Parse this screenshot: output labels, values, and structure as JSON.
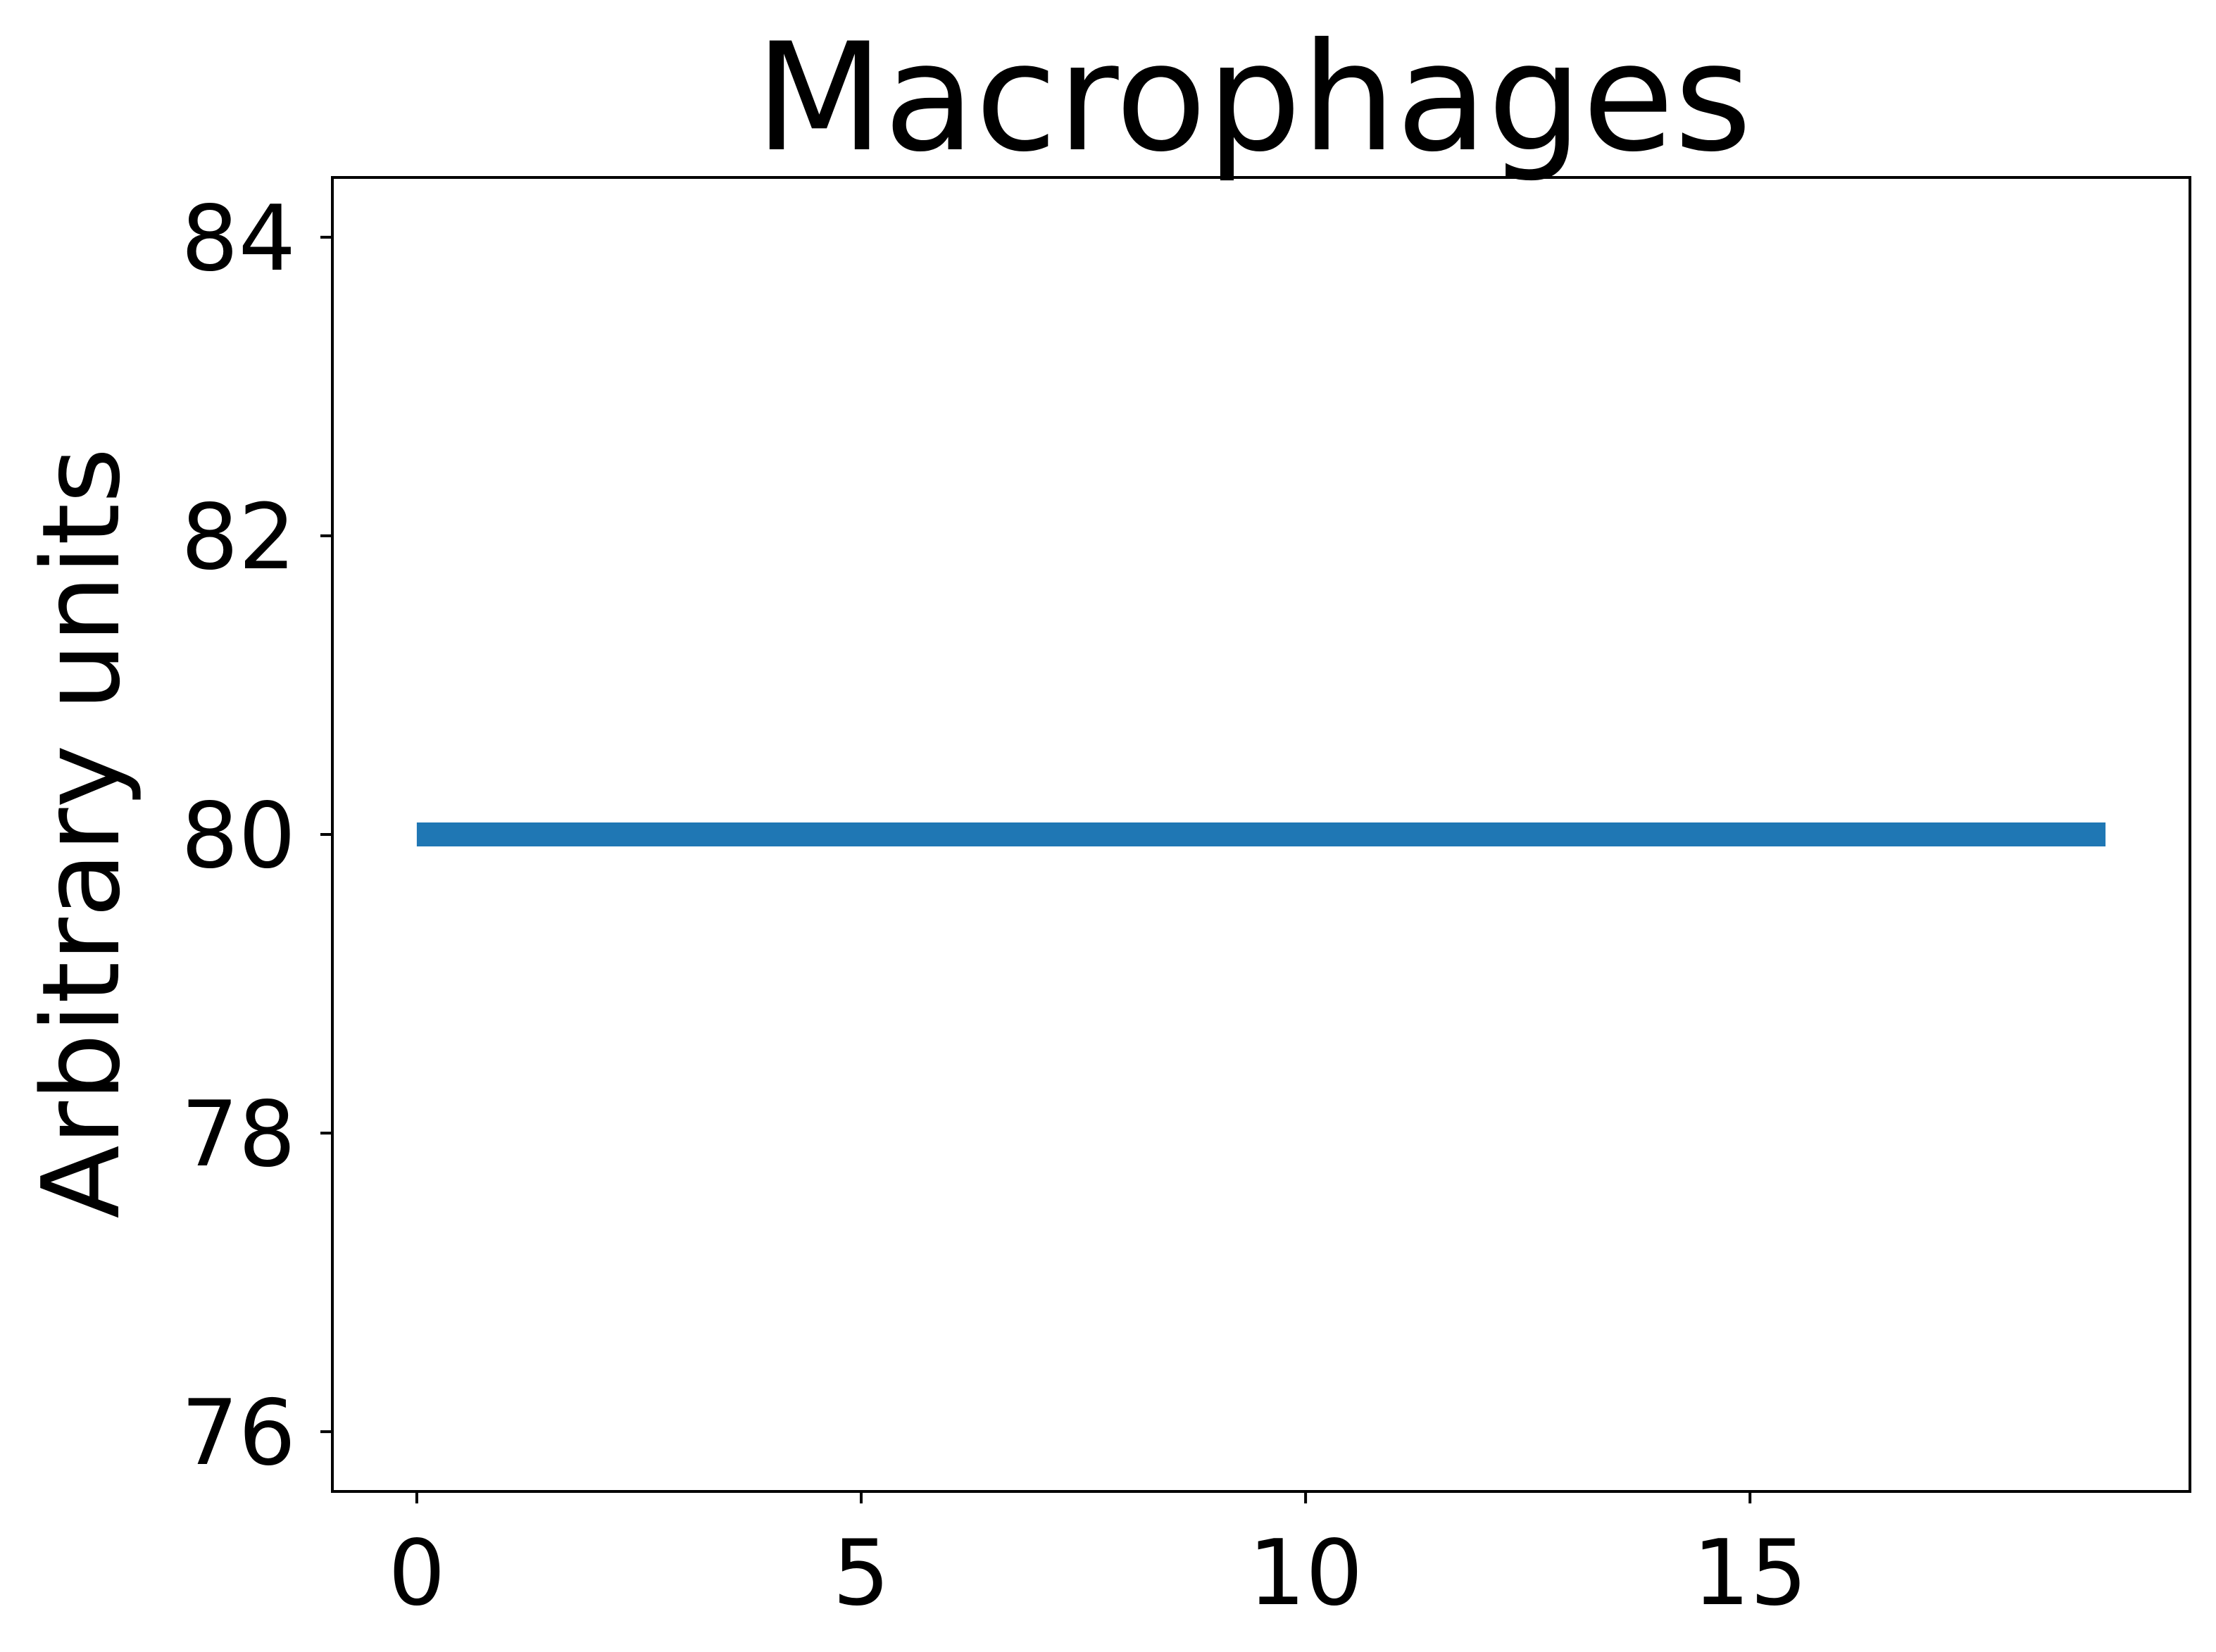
{
  "chart_data": {
    "type": "line",
    "title": "Macrophages",
    "xlabel": "",
    "ylabel": "Arbitrary units",
    "xlim": [
      -0.95,
      19.95
    ],
    "ylim": [
      75.6,
      84.4
    ],
    "x_ticks": [
      0,
      5,
      10,
      15
    ],
    "x_tick_labels": [
      "0",
      "5",
      "10",
      "15"
    ],
    "y_ticks": [
      76,
      78,
      80,
      82,
      84
    ],
    "y_tick_labels": [
      "76",
      "78",
      "80",
      "82",
      "84"
    ],
    "grid": false,
    "series": [
      {
        "color": "#1f77b4",
        "x": [
          0,
          1,
          2,
          3,
          4,
          5,
          6,
          7,
          8,
          9,
          10,
          11,
          12,
          13,
          14,
          15,
          16,
          17,
          18,
          19
        ],
        "y": [
          80,
          80,
          80,
          80,
          80,
          80,
          80,
          80,
          80,
          80,
          80,
          80,
          80,
          80,
          80,
          80,
          80,
          80,
          80,
          80
        ]
      }
    ]
  }
}
